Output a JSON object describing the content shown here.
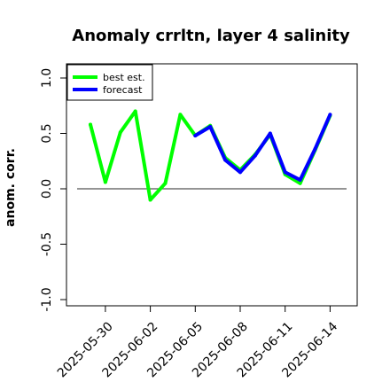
{
  "chart_data": {
    "type": "line",
    "title": "Anomaly crrltn, layer 4 salinity",
    "ylabel": "anom. corr.",
    "xlabel": "",
    "ylim": [
      -1.0,
      1.0
    ],
    "yticks": [
      -1.0,
      -0.5,
      0.0,
      0.5,
      1.0
    ],
    "ytick_labels": [
      "-1.0",
      "-0.5",
      "0.0",
      "0.5",
      "1.0"
    ],
    "xticks": [
      "2025-05-30",
      "2025-06-02",
      "2025-06-05",
      "2025-06-08",
      "2025-06-11",
      "2025-06-14"
    ],
    "xtick_colors": [
      "#000000",
      "#000000",
      "#228b22",
      "#000000",
      "#000000",
      "#000000"
    ],
    "x": [
      "2025-05-29",
      "2025-05-30",
      "2025-05-31",
      "2025-06-01",
      "2025-06-02",
      "2025-06-03",
      "2025-06-04",
      "2025-06-05",
      "2025-06-06",
      "2025-06-07",
      "2025-06-08",
      "2025-06-09",
      "2025-06-10",
      "2025-06-11",
      "2025-06-12",
      "2025-06-13",
      "2025-06-14"
    ],
    "reference_line": 0.0,
    "legend_position": "top-left",
    "grid": false,
    "series": [
      {
        "name": "best est.",
        "color": "#00ff00",
        "values": [
          0.58,
          0.06,
          0.51,
          0.7,
          -0.1,
          0.05,
          0.67,
          0.48,
          0.57,
          0.28,
          0.17,
          0.31,
          0.49,
          0.13,
          0.05,
          0.35,
          0.66
        ]
      },
      {
        "name": "forecast",
        "color": "#0000ff",
        "values": [
          null,
          null,
          null,
          null,
          null,
          null,
          null,
          0.48,
          0.56,
          0.26,
          0.15,
          0.3,
          0.5,
          0.15,
          0.08,
          0.36,
          0.67
        ]
      }
    ]
  }
}
